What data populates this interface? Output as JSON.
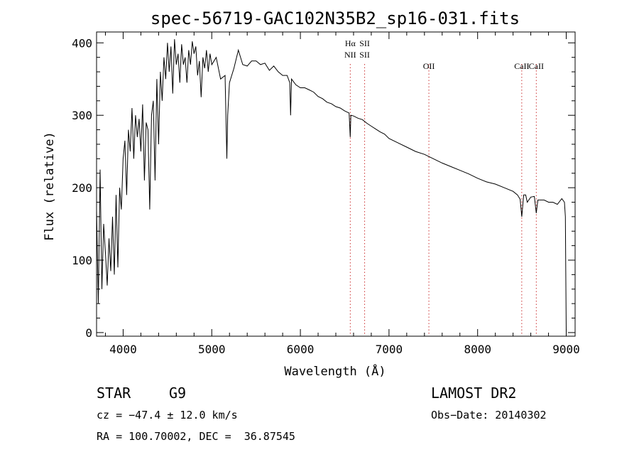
{
  "chart_data": {
    "type": "line",
    "title": "spec-56719-GAC102N35B2_sp16-031.fits",
    "xlabel": "Wavelength (Å)",
    "ylabel": "Flux (relative)",
    "xlim": [
      3700,
      9100
    ],
    "ylim": [
      -5,
      415
    ],
    "xticks": [
      4000,
      5000,
      6000,
      7000,
      8000,
      9000
    ],
    "yticks": [
      0,
      100,
      200,
      300,
      400
    ],
    "series": [
      {
        "color": "#000000",
        "x": [
          3700,
          3720,
          3740,
          3760,
          3780,
          3800,
          3820,
          3840,
          3860,
          3880,
          3900,
          3920,
          3940,
          3960,
          3980,
          4000,
          4020,
          4040,
          4060,
          4080,
          4100,
          4120,
          4140,
          4160,
          4180,
          4200,
          4220,
          4240,
          4260,
          4280,
          4300,
          4320,
          4340,
          4360,
          4380,
          4400,
          4420,
          4440,
          4460,
          4480,
          4500,
          4520,
          4540,
          4560,
          4580,
          4600,
          4620,
          4640,
          4660,
          4680,
          4700,
          4720,
          4740,
          4760,
          4780,
          4800,
          4820,
          4840,
          4860,
          4880,
          4900,
          4920,
          4940,
          4960,
          4980,
          5000,
          5050,
          5100,
          5150,
          5170,
          5180,
          5200,
          5250,
          5300,
          5350,
          5400,
          5450,
          5500,
          5550,
          5600,
          5650,
          5700,
          5750,
          5800,
          5850,
          5880,
          5890,
          5900,
          5950,
          6000,
          6050,
          6100,
          6150,
          6200,
          6250,
          6300,
          6350,
          6400,
          6450,
          6500,
          6550,
          6563,
          6570,
          6600,
          6650,
          6700,
          6750,
          6800,
          6850,
          6900,
          6950,
          7000,
          7100,
          7200,
          7300,
          7400,
          7500,
          7600,
          7700,
          7800,
          7900,
          8000,
          8100,
          8200,
          8300,
          8400,
          8450,
          8480,
          8498,
          8520,
          8542,
          8560,
          8600,
          8640,
          8662,
          8680,
          8700,
          8750,
          8800,
          8850,
          8900,
          8950,
          8980,
          8990,
          9000
        ],
        "y": [
          170,
          40,
          225,
          60,
          150,
          110,
          65,
          130,
          85,
          160,
          80,
          190,
          90,
          200,
          170,
          240,
          265,
          190,
          280,
          250,
          310,
          240,
          300,
          270,
          295,
          250,
          315,
          210,
          290,
          280,
          170,
          300,
          320,
          210,
          350,
          260,
          360,
          320,
          380,
          350,
          400,
          360,
          395,
          330,
          405,
          370,
          385,
          345,
          398,
          370,
          380,
          345,
          390,
          370,
          402,
          385,
          395,
          355,
          375,
          325,
          380,
          365,
          390,
          360,
          385,
          370,
          380,
          350,
          355,
          240,
          300,
          345,
          365,
          390,
          370,
          368,
          375,
          375,
          370,
          372,
          362,
          368,
          360,
          355,
          355,
          345,
          300,
          350,
          342,
          338,
          338,
          335,
          332,
          326,
          323,
          318,
          316,
          312,
          310,
          306,
          303,
          270,
          300,
          299,
          296,
          294,
          289,
          285,
          281,
          277,
          274,
          268,
          262,
          256,
          250,
          246,
          240,
          234,
          229,
          224,
          219,
          213,
          208,
          205,
          200,
          195,
          190,
          184,
          160,
          190,
          190,
          180,
          187,
          188,
          165,
          183,
          183,
          183,
          180,
          180,
          177,
          185,
          180,
          160,
          0
        ]
      }
    ],
    "line_markers": [
      {
        "x": 6563,
        "labels": [
          "Hα",
          "NII"
        ],
        "color": "#cc3333"
      },
      {
        "x": 6725,
        "labels": [
          "SII",
          "SII"
        ],
        "color": "#cc3333"
      },
      {
        "x": 7450,
        "labels": [
          "OII"
        ],
        "color": "#cc3333"
      },
      {
        "x": 8498,
        "labels": [
          "CaII"
        ],
        "color": "#cc3333"
      },
      {
        "x": 8662,
        "labels": [
          "CaII"
        ],
        "color": "#cc3333"
      }
    ]
  },
  "info": {
    "class_label": "STAR",
    "subclass": "G9",
    "survey": "LAMOST DR2",
    "cz": "cz = −47.4 ± 12.0 km/s",
    "obs_date": "Obs−Date: 20140302",
    "coords": "RA = 100.70002, DEC =  36.87545"
  }
}
